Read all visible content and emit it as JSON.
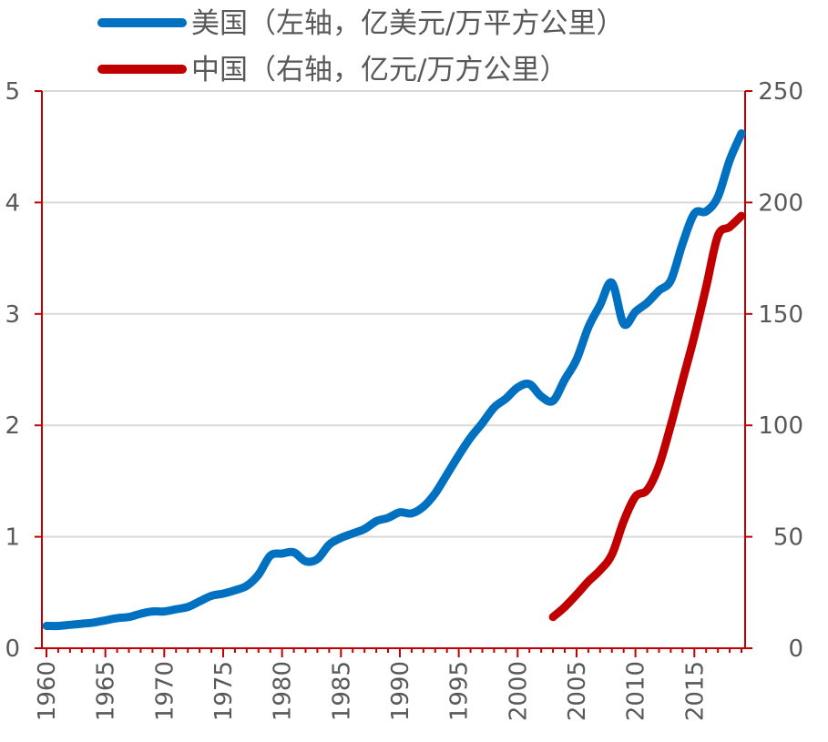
{
  "chart_data": {
    "type": "line",
    "title": "",
    "grid": true,
    "legend_placement": "top",
    "x_axis": {
      "range": [
        1960,
        2019
      ],
      "tick_labels": [
        "1960",
        "1965",
        "1970",
        "1975",
        "1980",
        "1985",
        "1990",
        "1995",
        "2000",
        "2005",
        "2010",
        "2015"
      ]
    },
    "y_left": {
      "range": [
        0,
        5
      ],
      "tick_labels": [
        "0",
        "1",
        "2",
        "3",
        "4",
        "5"
      ],
      "color": "#4a4a4a"
    },
    "y_right": {
      "range": [
        0,
        250
      ],
      "tick_labels": [
        "0",
        "50",
        "100",
        "150",
        "200",
        "250"
      ],
      "color": "#c00000"
    },
    "series": [
      {
        "name": "美国（左轴，亿美元/万平方公里）",
        "axis": "left",
        "color": "#0070c0",
        "x": [
          1960,
          1961,
          1962,
          1963,
          1964,
          1965,
          1966,
          1967,
          1968,
          1969,
          1970,
          1971,
          1972,
          1973,
          1974,
          1975,
          1976,
          1977,
          1978,
          1979,
          1980,
          1981,
          1982,
          1983,
          1984,
          1985,
          1986,
          1987,
          1988,
          1989,
          1990,
          1991,
          1992,
          1993,
          1994,
          1995,
          1996,
          1997,
          1998,
          1999,
          2000,
          2001,
          2002,
          2003,
          2004,
          2005,
          2006,
          2007,
          2008,
          2009,
          2010,
          2011,
          2012,
          2013,
          2014,
          2015,
          2016,
          2017,
          2018,
          2019
        ],
        "values": [
          0.2,
          0.2,
          0.21,
          0.22,
          0.23,
          0.25,
          0.27,
          0.28,
          0.31,
          0.33,
          0.33,
          0.35,
          0.37,
          0.42,
          0.47,
          0.49,
          0.52,
          0.56,
          0.66,
          0.83,
          0.85,
          0.86,
          0.78,
          0.8,
          0.93,
          0.99,
          1.03,
          1.07,
          1.14,
          1.17,
          1.22,
          1.21,
          1.27,
          1.39,
          1.56,
          1.73,
          1.89,
          2.02,
          2.16,
          2.24,
          2.34,
          2.37,
          2.26,
          2.22,
          2.41,
          2.59,
          2.88,
          3.08,
          3.28,
          2.91,
          3.02,
          3.1,
          3.21,
          3.3,
          3.63,
          3.9,
          3.92,
          4.05,
          4.38,
          4.62
        ]
      },
      {
        "name": "中国（右轴，亿元/万方公里）",
        "axis": "right",
        "color": "#c00000",
        "x": [
          2003,
          2004,
          2005,
          2006,
          2007,
          2008,
          2009,
          2010,
          2011,
          2012,
          2013,
          2014,
          2015,
          2016,
          2017,
          2018,
          2019
        ],
        "values": [
          14,
          18.5,
          24,
          30,
          35,
          42,
          57,
          68,
          71,
          82,
          100,
          120,
          140,
          162,
          185,
          189,
          194
        ]
      }
    ]
  }
}
